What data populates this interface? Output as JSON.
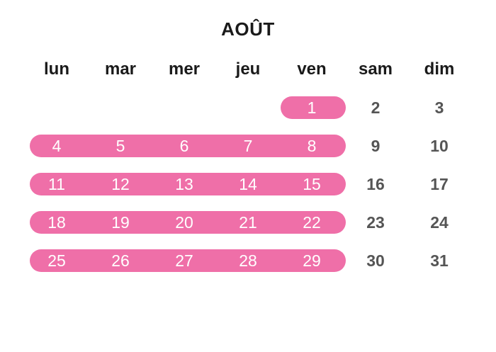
{
  "calendar": {
    "month": "AOÛT",
    "weekdays": [
      "lun",
      "mar",
      "mer",
      "jeu",
      "ven",
      "sam",
      "dim"
    ],
    "weeks": [
      [
        "",
        "",
        "",
        "",
        "1",
        "2",
        "3"
      ],
      [
        "4",
        "5",
        "6",
        "7",
        "8",
        "9",
        "10"
      ],
      [
        "11",
        "12",
        "13",
        "14",
        "15",
        "16",
        "17"
      ],
      [
        "18",
        "19",
        "20",
        "21",
        "22",
        "23",
        "24"
      ],
      [
        "25",
        "26",
        "27",
        "28",
        "29",
        "30",
        "31"
      ]
    ]
  },
  "colors": {
    "highlight": "#ef6fa8",
    "weekend_text": "#555555",
    "weekday_text": "#ffffff",
    "header_text": "#1a1a1a"
  }
}
